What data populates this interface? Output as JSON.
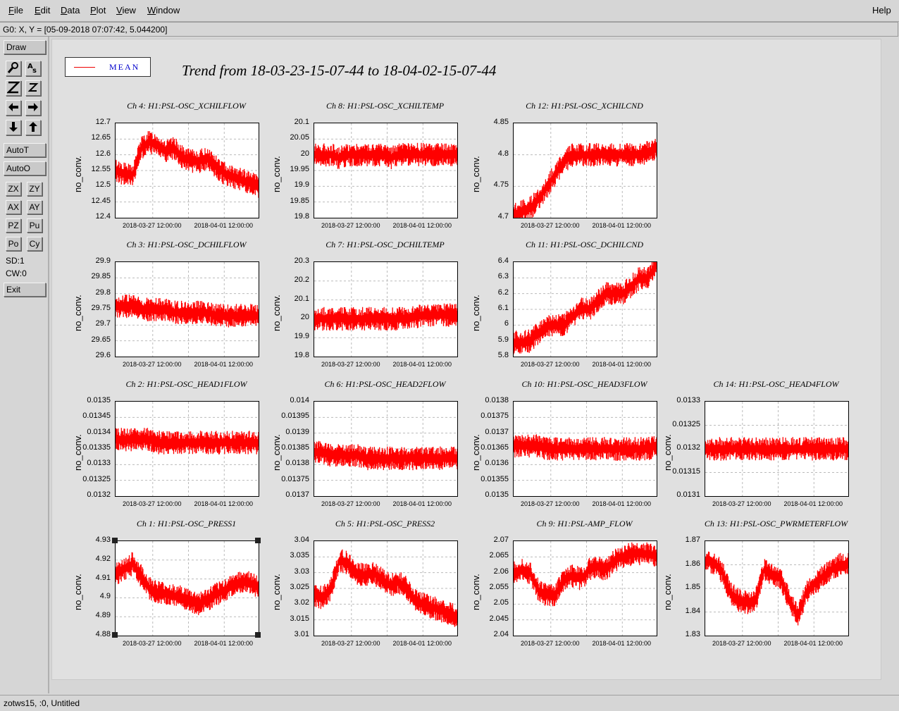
{
  "menu": {
    "items": [
      {
        "label": "File",
        "u": "F",
        "rest": "ile"
      },
      {
        "label": "Edit",
        "u": "E",
        "rest": "dit"
      },
      {
        "label": "Data",
        "u": "D",
        "rest": "ata"
      },
      {
        "label": "Plot",
        "u": "P",
        "rest": "lot"
      },
      {
        "label": "View",
        "u": "V",
        "rest": "iew"
      },
      {
        "label": "Window",
        "u": "W",
        "rest": "indow"
      }
    ],
    "help": "Help"
  },
  "coord_readout": "G0: X, Y = [05-09-2018 07:07:42, 5.044200]",
  "toolbar": {
    "draw": "Draw",
    "auto_t": "AutoT",
    "auto_o": "AutoO",
    "sd": "SD:1",
    "cw": "CW:0",
    "exit": "Exit",
    "small_buttons": [
      "ZX",
      "ZY",
      "AX",
      "AY",
      "PZ",
      "Pu",
      "Po",
      "Cy"
    ],
    "icon_names": [
      "magnify-icon",
      "text-style-icon",
      "zoom-z-icon",
      "zoom-z-small-icon",
      "arrow-left-icon",
      "arrow-right-icon",
      "arrow-down-icon",
      "arrow-up-icon"
    ]
  },
  "legend": {
    "label": "MEAN",
    "color": "#ff0000"
  },
  "title": "Trend from 18-03-23-15-07-44 to 18-04-02-15-07-44",
  "status_bottom": "zotws15, :0, Untitled",
  "chart_data": [
    {
      "type": "line",
      "title": "Ch 4: H1:PSL-OSC_XCHILFLOW",
      "ylabel": "no_conv.",
      "yticks": [
        "12.7",
        "12.65",
        "12.6",
        "12.55",
        "12.5",
        "12.45",
        "12.4"
      ],
      "ylim": [
        12.4,
        12.7
      ],
      "xticks": [
        "2018-03-27 12:00:00",
        "2018-04-01 12:00:00"
      ],
      "series": [
        {
          "name": "MEAN",
          "values": [
            12.55,
            12.54,
            12.53,
            12.62,
            12.64,
            12.63,
            12.61,
            12.62,
            12.59,
            12.58,
            12.58,
            12.59,
            12.56,
            12.54,
            12.53,
            12.52,
            12.51,
            12.5
          ]
        }
      ]
    },
    {
      "type": "line",
      "title": "Ch 8: H1:PSL-OSC_XCHILTEMP",
      "ylabel": "no_conv.",
      "yticks": [
        "20.1",
        "20.05",
        "20",
        "19.95",
        "19.9",
        "19.85",
        "19.8"
      ],
      "ylim": [
        19.8,
        20.1
      ],
      "xticks": [
        "2018-03-27 12:00:00",
        "2018-04-01 12:00:00"
      ],
      "series": [
        {
          "name": "MEAN",
          "values": [
            20.0,
            20.0,
            20.0,
            19.99,
            20.0,
            20.0,
            20.0,
            20.0,
            20.0,
            19.99,
            20.0,
            20.0,
            20.0,
            20.0,
            20.0,
            20.0,
            20.0,
            20.0
          ]
        }
      ]
    },
    {
      "type": "line",
      "title": "Ch 12: H1:PSL-OSC_XCHILCND",
      "ylabel": "no_conv.",
      "yticks": [
        "4.85",
        "4.8",
        "4.75",
        "4.7"
      ],
      "ylim": [
        4.7,
        4.85
      ],
      "xticks": [
        "2018-03-27 12:00:00",
        "2018-04-01 12:00:00"
      ],
      "series": [
        {
          "name": "MEAN",
          "values": [
            4.705,
            4.71,
            4.715,
            4.73,
            4.75,
            4.77,
            4.79,
            4.8,
            4.8,
            4.8,
            4.8,
            4.8,
            4.8,
            4.8,
            4.8,
            4.8,
            4.805,
            4.81
          ]
        }
      ]
    },
    {
      "type": "line",
      "title": "Ch 3: H1:PSL-OSC_DCHILFLOW",
      "ylabel": "no_conv.",
      "yticks": [
        "29.9",
        "29.85",
        "29.8",
        "29.75",
        "29.7",
        "29.65",
        "29.6"
      ],
      "ylim": [
        29.6,
        29.9
      ],
      "xticks": [
        "2018-03-27 12:00:00",
        "2018-04-01 12:00:00"
      ],
      "series": [
        {
          "name": "MEAN",
          "values": [
            29.76,
            29.76,
            29.76,
            29.75,
            29.75,
            29.75,
            29.75,
            29.74,
            29.74,
            29.74,
            29.74,
            29.74,
            29.73,
            29.73,
            29.73,
            29.73,
            29.73,
            29.73
          ]
        }
      ]
    },
    {
      "type": "line",
      "title": "Ch 7: H1:PSL-OSC_DCHILTEMP",
      "ylabel": "no_conv.",
      "yticks": [
        "20.3",
        "20.2",
        "20.1",
        "20",
        "19.9",
        "19.8"
      ],
      "ylim": [
        19.8,
        20.3
      ],
      "xticks": [
        "2018-03-27 12:00:00",
        "2018-04-01 12:00:00"
      ],
      "series": [
        {
          "name": "MEAN",
          "values": [
            20.0,
            20.0,
            20.0,
            20.0,
            20.0,
            20.0,
            20.0,
            20.0,
            20.0,
            20.0,
            20.0,
            20.0,
            20.01,
            20.02,
            20.02,
            20.02,
            20.02,
            20.02
          ]
        }
      ]
    },
    {
      "type": "line",
      "title": "Ch 11: H1:PSL-OSC_DCHILCND",
      "ylabel": "no_conv.",
      "yticks": [
        "6.4",
        "6.3",
        "6.2",
        "6.1",
        "6",
        "5.9",
        "5.8"
      ],
      "ylim": [
        5.8,
        6.4
      ],
      "xticks": [
        "2018-03-27 12:00:00",
        "2018-04-01 12:00:00"
      ],
      "series": [
        {
          "name": "MEAN",
          "values": [
            5.89,
            5.89,
            5.9,
            5.95,
            6.0,
            6.0,
            6.0,
            6.05,
            6.1,
            6.1,
            6.15,
            6.2,
            6.2,
            6.2,
            6.25,
            6.3,
            6.3,
            6.39
          ]
        }
      ]
    },
    {
      "type": "line",
      "title": "Ch 2: H1:PSL-OSC_HEAD1FLOW",
      "ylabel": "no_conv.",
      "yticks": [
        "0.0135",
        "0.01345",
        "0.0134",
        "0.01335",
        "0.0133",
        "0.01325",
        "0.0132"
      ],
      "ylim": [
        0.0132,
        0.0135
      ],
      "xticks": [
        "2018-03-27 12:00:00",
        "2018-04-01 12:00:00"
      ],
      "series": [
        {
          "name": "MEAN",
          "values": [
            0.01338,
            0.01338,
            0.01338,
            0.01338,
            0.01338,
            0.01337,
            0.01337,
            0.01337,
            0.01337,
            0.01337,
            0.01337,
            0.01337,
            0.01337,
            0.01337,
            0.01337,
            0.01337,
            0.01337,
            0.01337
          ]
        }
      ]
    },
    {
      "type": "line",
      "title": "Ch 6: H1:PSL-OSC_HEAD2FLOW",
      "ylabel": "no_conv.",
      "yticks": [
        "0.014",
        "0.01395",
        "0.0139",
        "0.01385",
        "0.0138",
        "0.01375",
        "0.0137"
      ],
      "ylim": [
        0.0137,
        0.014
      ],
      "xticks": [
        "2018-03-27 12:00:00",
        "2018-04-01 12:00:00"
      ],
      "series": [
        {
          "name": "MEAN",
          "values": [
            0.01384,
            0.01384,
            0.01383,
            0.01383,
            0.01383,
            0.01383,
            0.01382,
            0.01382,
            0.01382,
            0.01382,
            0.01382,
            0.01382,
            0.01382,
            0.01382,
            0.01382,
            0.01382,
            0.01382,
            0.01382
          ]
        }
      ]
    },
    {
      "type": "line",
      "title": "Ch 10: H1:PSL-OSC_HEAD3FLOW",
      "ylabel": "no_conv.",
      "yticks": [
        "0.0138",
        "0.01375",
        "0.0137",
        "0.01365",
        "0.0136",
        "0.01355",
        "0.0135"
      ],
      "ylim": [
        0.0135,
        0.0138
      ],
      "xticks": [
        "2018-03-27 12:00:00",
        "2018-04-01 12:00:00"
      ],
      "series": [
        {
          "name": "MEAN",
          "values": [
            0.01366,
            0.01366,
            0.01366,
            0.01366,
            0.01365,
            0.01365,
            0.01365,
            0.01365,
            0.01365,
            0.01365,
            0.01365,
            0.01365,
            0.01365,
            0.01365,
            0.01365,
            0.01365,
            0.01365,
            0.01366
          ]
        }
      ]
    },
    {
      "type": "line",
      "title": "Ch 14: H1:PSL-OSC_HEAD4FLOW",
      "ylabel": "no_conv.",
      "yticks": [
        "0.0133",
        "0.01325",
        "0.0132",
        "0.01315",
        "0.0131"
      ],
      "ylim": [
        0.0131,
        0.0133
      ],
      "xticks": [
        "2018-03-27 12:00:00",
        "2018-04-01 12:00:00"
      ],
      "series": [
        {
          "name": "MEAN",
          "values": [
            0.0132,
            0.0132,
            0.0132,
            0.0132,
            0.0132,
            0.0132,
            0.0132,
            0.0132,
            0.0132,
            0.0132,
            0.0132,
            0.0132,
            0.0132,
            0.0132,
            0.0132,
            0.0132,
            0.0132,
            0.0132
          ]
        }
      ]
    },
    {
      "type": "line",
      "title": "Ch 1: H1:PSL-OSC_PRESS1",
      "ylabel": "no_conv.",
      "yticks": [
        "4.93",
        "4.92",
        "4.91",
        "4.9",
        "4.89",
        "4.88"
      ],
      "ylim": [
        4.88,
        4.93
      ],
      "xticks": [
        "2018-03-27 12:00:00",
        "2018-04-01 12:00:00"
      ],
      "series": [
        {
          "name": "MEAN",
          "values": [
            4.912,
            4.915,
            4.918,
            4.912,
            4.905,
            4.903,
            4.902,
            4.901,
            4.9,
            4.898,
            4.897,
            4.899,
            4.902,
            4.904,
            4.907,
            4.909,
            4.908,
            4.905
          ]
        }
      ]
    },
    {
      "type": "line",
      "title": "Ch 5: H1:PSL-OSC_PRESS2",
      "ylabel": "no_conv.",
      "yticks": [
        "3.04",
        "3.035",
        "3.03",
        "3.025",
        "3.02",
        "3.015",
        "3.01"
      ],
      "ylim": [
        3.01,
        3.04
      ],
      "xticks": [
        "2018-03-27 12:00:00",
        "2018-04-01 12:00:00"
      ],
      "series": [
        {
          "name": "MEAN",
          "values": [
            3.023,
            3.022,
            3.025,
            3.034,
            3.033,
            3.03,
            3.029,
            3.03,
            3.028,
            3.026,
            3.027,
            3.025,
            3.021,
            3.02,
            3.019,
            3.018,
            3.017,
            3.016
          ]
        }
      ]
    },
    {
      "type": "line",
      "title": "Ch 9: H1:PSL-AMP_FLOW",
      "ylabel": "no_conv.",
      "yticks": [
        "2.07",
        "2.065",
        "2.06",
        "2.055",
        "2.05",
        "2.045",
        "2.04"
      ],
      "ylim": [
        2.04,
        2.07
      ],
      "xticks": [
        "2018-03-27 12:00:00",
        "2018-04-01 12:00:00"
      ],
      "series": [
        {
          "name": "MEAN",
          "values": [
            2.06,
            2.061,
            2.06,
            2.054,
            2.053,
            2.053,
            2.058,
            2.059,
            2.058,
            2.061,
            2.062,
            2.061,
            2.064,
            2.065,
            2.066,
            2.066,
            2.066,
            2.065
          ]
        }
      ]
    },
    {
      "type": "line",
      "title": "Ch 13: H1:PSL-OSC_PWRMETERFLOW",
      "ylabel": "no_conv.",
      "yticks": [
        "1.87",
        "1.86",
        "1.85",
        "1.84",
        "1.83"
      ],
      "ylim": [
        1.83,
        1.87
      ],
      "xticks": [
        "2018-03-27 12:00:00",
        "2018-04-01 12:00:00"
      ],
      "series": [
        {
          "name": "MEAN",
          "values": [
            1.862,
            1.861,
            1.857,
            1.848,
            1.845,
            1.844,
            1.845,
            1.858,
            1.856,
            1.854,
            1.845,
            1.838,
            1.848,
            1.852,
            1.855,
            1.858,
            1.86,
            1.86
          ]
        }
      ]
    }
  ]
}
